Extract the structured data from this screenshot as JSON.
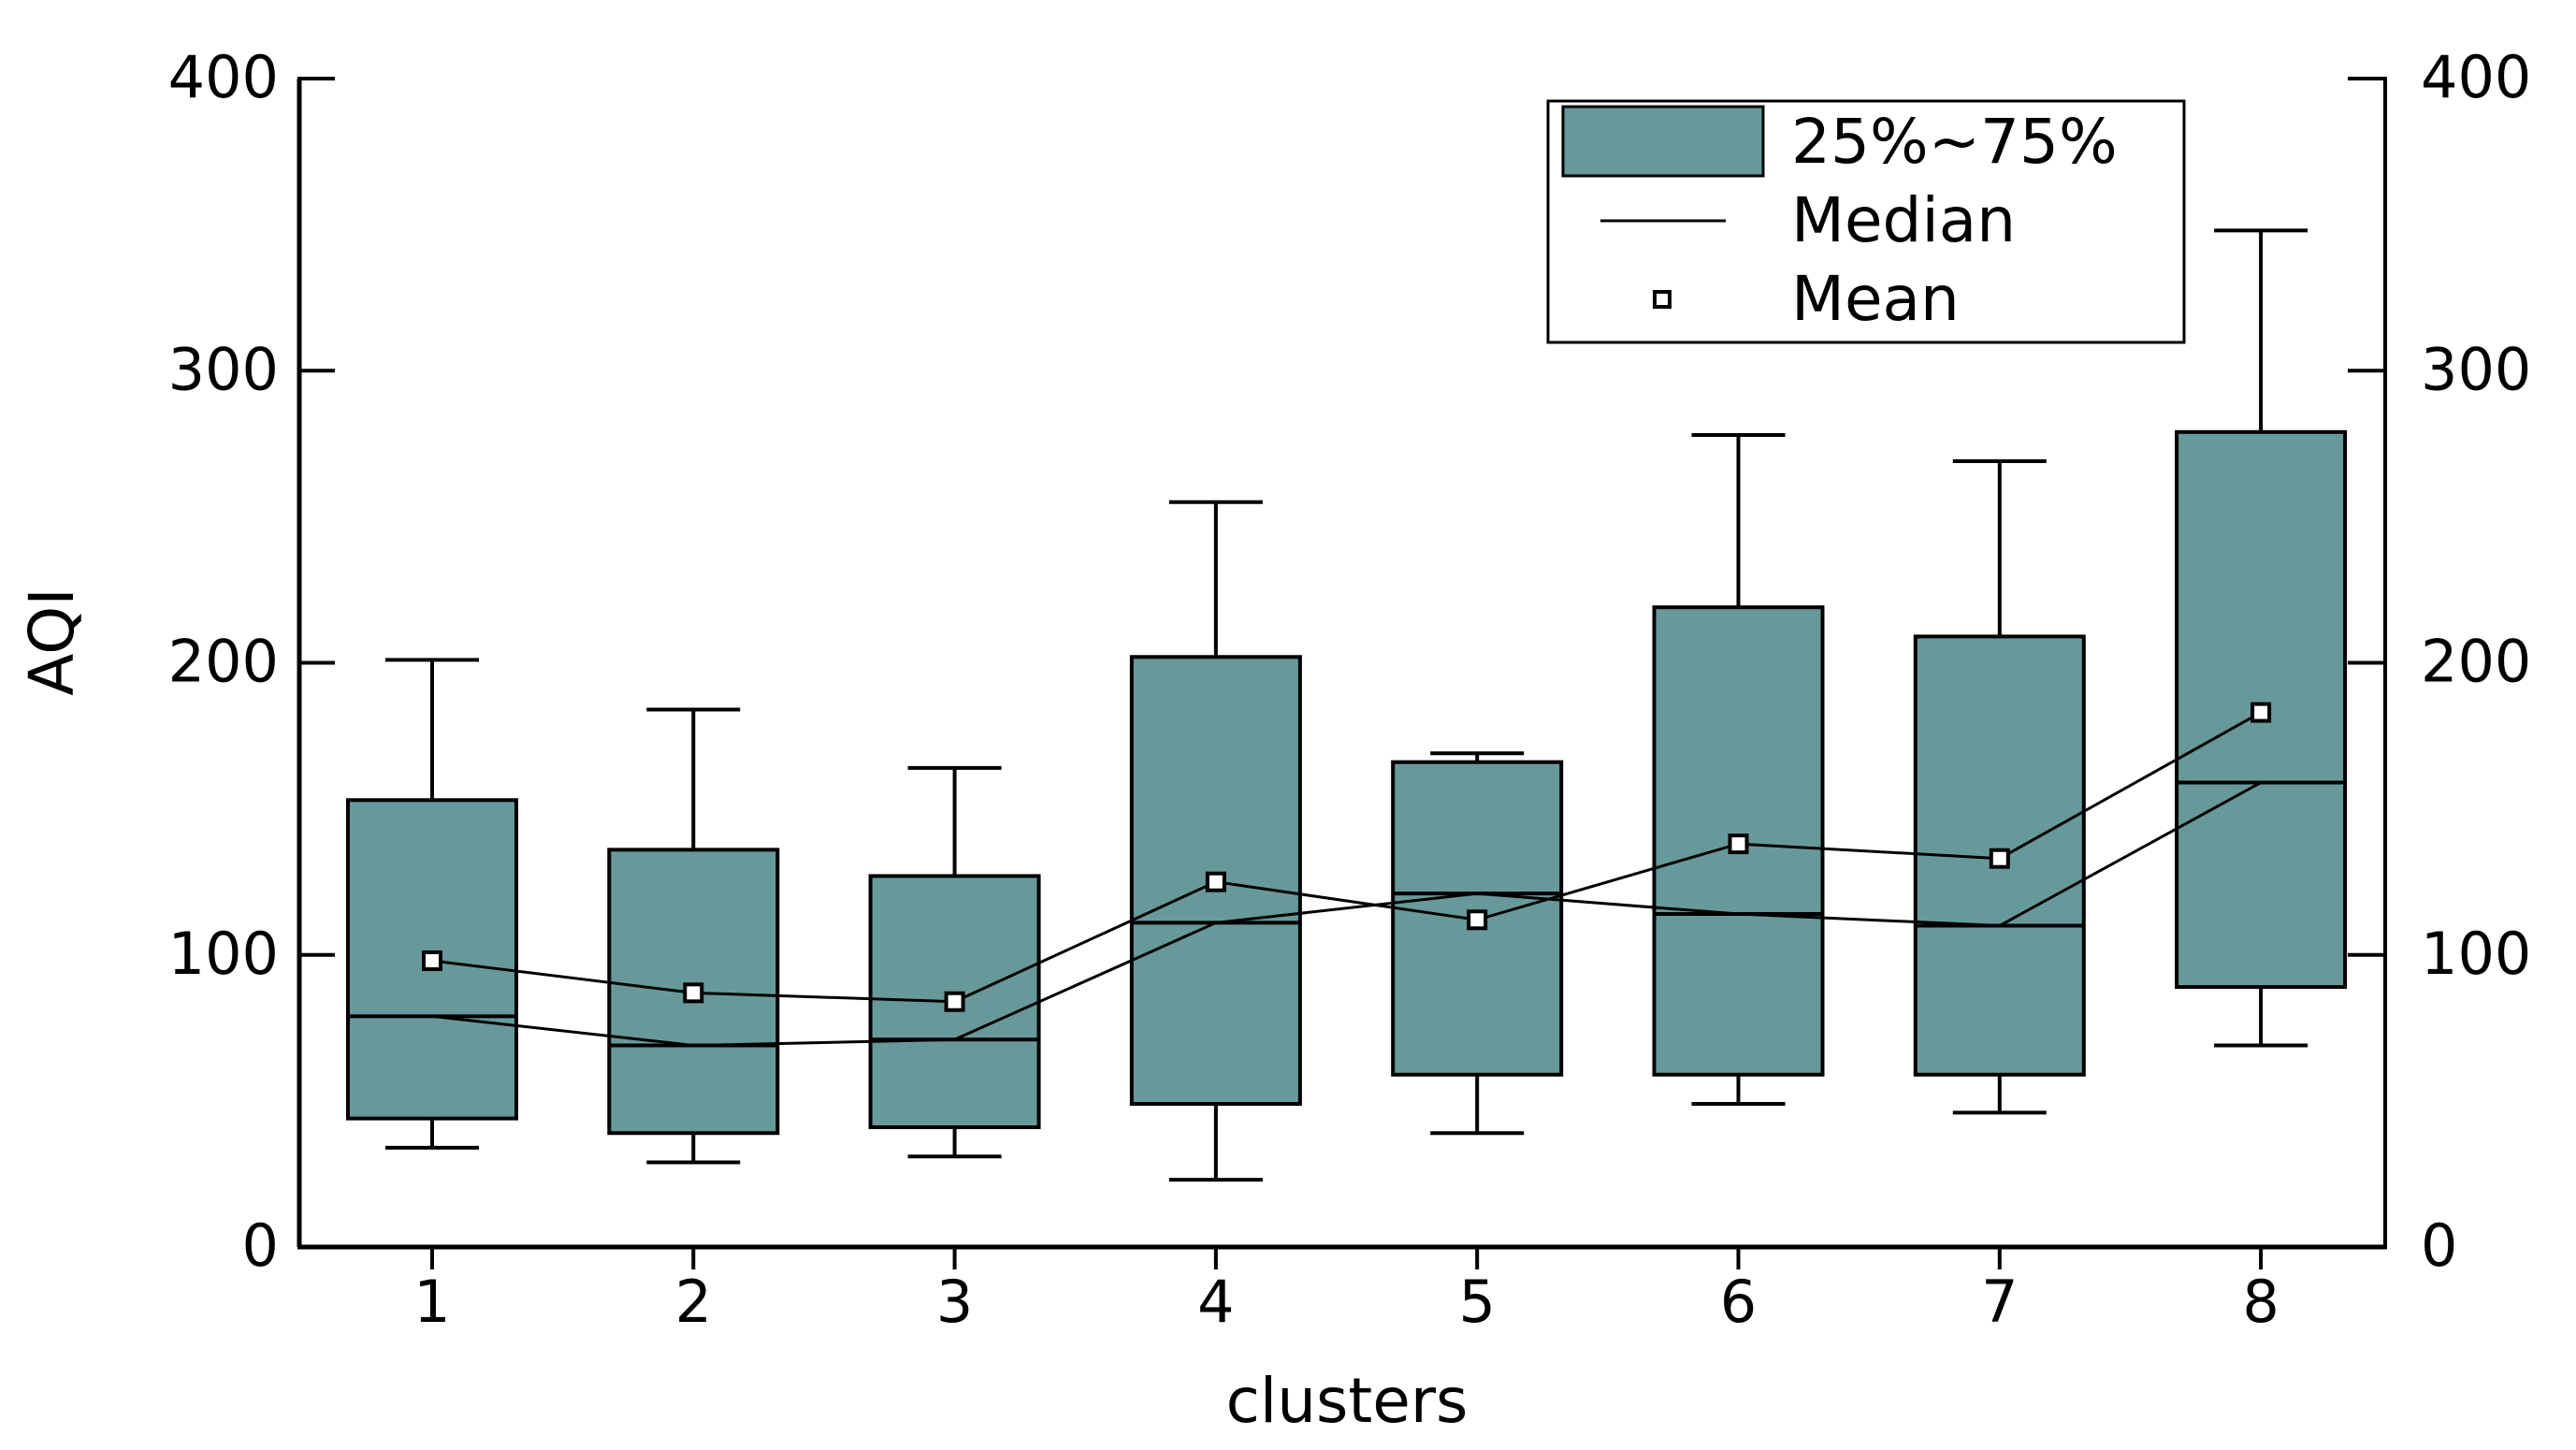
{
  "chart_data": {
    "type": "box",
    "title": "",
    "xlabel": "clusters",
    "ylabel": "AQI",
    "ylim": [
      0,
      400
    ],
    "yticks": [
      0,
      100,
      200,
      300,
      400
    ],
    "categories": [
      "1",
      "2",
      "3",
      "4",
      "5",
      "6",
      "7",
      "8"
    ],
    "series": [
      {
        "name": "1",
        "whisker_low": 34,
        "q1": 44,
        "median": 79,
        "q3": 153,
        "whisker_high": 201,
        "mean": 98
      },
      {
        "name": "2",
        "whisker_low": 29,
        "q1": 39,
        "median": 69,
        "q3": 136,
        "whisker_high": 184,
        "mean": 87
      },
      {
        "name": "3",
        "whisker_low": 31,
        "q1": 41,
        "median": 71,
        "q3": 127,
        "whisker_high": 164,
        "mean": 84
      },
      {
        "name": "4",
        "whisker_low": 23,
        "q1": 49,
        "median": 111,
        "q3": 202,
        "whisker_high": 255,
        "mean": 125
      },
      {
        "name": "5",
        "whisker_low": 39,
        "q1": 59,
        "median": 121,
        "q3": 166,
        "whisker_high": 169,
        "mean": 112
      },
      {
        "name": "6",
        "whisker_low": 49,
        "q1": 59,
        "median": 114,
        "q3": 219,
        "whisker_high": 278,
        "mean": 138
      },
      {
        "name": "7",
        "whisker_low": 46,
        "q1": 59,
        "median": 110,
        "q3": 209,
        "whisker_high": 269,
        "mean": 133
      },
      {
        "name": "8",
        "whisker_low": 69,
        "q1": 89,
        "median": 159,
        "q3": 279,
        "whisker_high": 348,
        "mean": 183
      }
    ],
    "legend": {
      "position": "top-right",
      "entries": [
        {
          "kind": "box",
          "label": "25%~75%"
        },
        {
          "kind": "line",
          "label": "Median"
        },
        {
          "kind": "marker",
          "label": "Mean"
        }
      ]
    },
    "grid": false,
    "right_axis_mirrored": true
  },
  "colors": {
    "box_fill": "#68999A",
    "line": "#000000",
    "background": "#FFFFFF"
  }
}
